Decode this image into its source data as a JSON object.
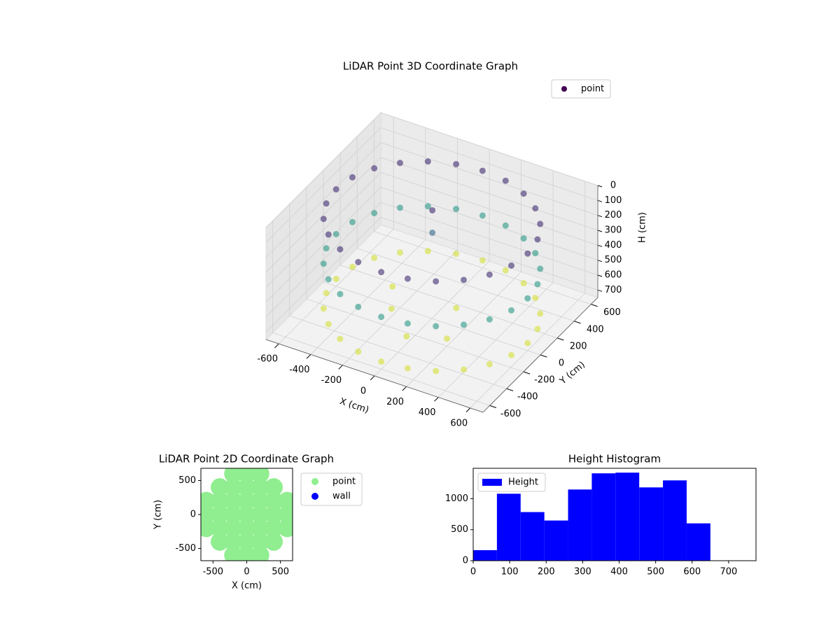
{
  "chart_data": [
    {
      "type": "scatter3d",
      "title": "LiDAR Point 3D Coordinate Graph",
      "xlabel": "X (cm)",
      "ylabel": "Y (cm)",
      "zlabel": "H (cm)",
      "xlim": [
        -680,
        680
      ],
      "ylim": [
        -680,
        680
      ],
      "zlim": [
        750,
        0
      ],
      "xticks": [
        -600,
        -400,
        -200,
        0,
        200,
        400,
        600
      ],
      "yticks": [
        -600,
        -400,
        -200,
        0,
        200,
        400,
        600
      ],
      "zticks": [
        0,
        100,
        200,
        300,
        400,
        500,
        600,
        700
      ],
      "cmap": "viridis",
      "legend": "upper right",
      "grid": true,
      "series": [
        {
          "name": "point",
          "color": "#440154",
          "x": [
            600,
            580,
            520,
            424,
            300,
            155,
            0,
            -155,
            -300,
            -424,
            -520,
            -580,
            -600,
            -580,
            -520,
            -424,
            -300,
            -155,
            0,
            155,
            300,
            424,
            520,
            580,
            600,
            580,
            520,
            424,
            300,
            155,
            0,
            -155,
            -300,
            -424,
            -520,
            -580,
            -600,
            -580,
            -520,
            -424,
            -300,
            -155,
            0,
            155,
            300,
            424,
            520,
            580,
            600,
            580,
            520,
            424,
            300,
            155,
            0,
            -155,
            -300,
            -424,
            -520,
            -580,
            -600,
            -580,
            -520,
            -424,
            -300,
            -155,
            0,
            155,
            300,
            424,
            520,
            580,
            -50,
            -50,
            -200,
            0,
            200,
            -300,
            100
          ],
          "y": [
            0,
            155,
            300,
            424,
            520,
            580,
            600,
            580,
            520,
            424,
            300,
            155,
            0,
            -155,
            -300,
            -424,
            -520,
            -580,
            -600,
            -580,
            -520,
            -424,
            -300,
            -155,
            0,
            155,
            300,
            424,
            520,
            580,
            600,
            580,
            520,
            424,
            300,
            155,
            0,
            -155,
            -300,
            -424,
            -520,
            -580,
            -600,
            -580,
            -520,
            -424,
            -300,
            -155,
            0,
            155,
            300,
            424,
            520,
            580,
            600,
            580,
            520,
            424,
            300,
            155,
            0,
            -155,
            -300,
            -424,
            -520,
            -580,
            -600,
            -580,
            -520,
            -424,
            -300,
            -155,
            100,
            100,
            -100,
            -300,
            -200,
            100,
            100
          ],
          "z": [
            100,
            100,
            100,
            100,
            100,
            100,
            100,
            100,
            100,
            100,
            100,
            100,
            100,
            100,
            100,
            100,
            100,
            100,
            100,
            100,
            100,
            100,
            100,
            100,
            400,
            400,
            400,
            400,
            400,
            400,
            400,
            400,
            400,
            400,
            400,
            400,
            400,
            400,
            400,
            400,
            400,
            400,
            400,
            400,
            400,
            400,
            400,
            400,
            700,
            700,
            700,
            700,
            700,
            700,
            700,
            700,
            700,
            700,
            700,
            700,
            700,
            700,
            700,
            700,
            700,
            700,
            700,
            700,
            700,
            700,
            700,
            700,
            100,
            250,
            700,
            700,
            700,
            700,
            700
          ]
        }
      ]
    },
    {
      "type": "scatter",
      "title": "LiDAR Point 2D Coordinate Graph",
      "xlabel": "X (cm)",
      "ylabel": "Y (cm)",
      "xlim": [
        -680,
        680
      ],
      "ylim": [
        -680,
        680
      ],
      "xticks": [
        -500,
        0,
        500
      ],
      "yticks": [
        -500,
        0,
        500
      ],
      "legend": "outside right",
      "series": [
        {
          "name": "point",
          "color": "lightgreen",
          "x": [
            -200,
            0,
            200,
            -400,
            -200,
            0,
            200,
            400,
            -600,
            -400,
            -200,
            0,
            200,
            400,
            600,
            -600,
            -400,
            -200,
            0,
            200,
            400,
            600,
            -600,
            -400,
            -200,
            0,
            200,
            400,
            600,
            -400,
            -200,
            0,
            200,
            400,
            -200,
            0,
            200
          ],
          "y": [
            600,
            600,
            600,
            400,
            400,
            400,
            400,
            400,
            200,
            200,
            200,
            200,
            200,
            200,
            200,
            0,
            0,
            0,
            0,
            0,
            0,
            0,
            -200,
            -200,
            -200,
            -200,
            -200,
            -200,
            -200,
            -400,
            -400,
            -400,
            -400,
            -400,
            -600,
            -600,
            -600
          ]
        },
        {
          "name": "wall",
          "color": "blue",
          "x": [],
          "y": []
        }
      ]
    },
    {
      "type": "histogram",
      "title": "Height Histogram",
      "bins": [
        0,
        65,
        130,
        195,
        260,
        325,
        390,
        455,
        520,
        585,
        650
      ],
      "values": [
        170,
        1080,
        784,
        648,
        1148,
        1409,
        1420,
        1182,
        1295,
        602
      ],
      "name": "Height",
      "color": "blue",
      "xlim": [
        0,
        775
      ],
      "ylim": [
        0,
        1490
      ],
      "xticks": [
        0,
        100,
        200,
        300,
        400,
        500,
        600,
        700
      ],
      "yticks": [
        0,
        500,
        1000
      ],
      "legend": "upper left"
    }
  ]
}
